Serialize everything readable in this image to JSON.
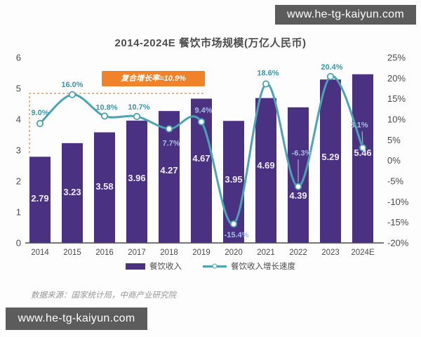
{
  "watermark": {
    "text": "www.he-tg-kaiyun.com"
  },
  "header": {
    "title": "2014-2024E 餐饮市场规模(万亿人民币)"
  },
  "annotation": {
    "cagr_label": "复合增长率=10.9%"
  },
  "footer": {
    "source": "数据来源：国家统计局，中商产业研究院"
  },
  "legend": {
    "items": [
      {
        "label": "餐饮收入"
      },
      {
        "label": "餐饮收入增长速度"
      }
    ]
  },
  "colors": {
    "bar": "#4a3181",
    "line": "#4aa4b4",
    "accent_orange": "#f0832a",
    "label_on_bar": "#a6bfe6",
    "label_teal": "#3597a9",
    "axis_text": "#4a4a4a",
    "watermark_bg": "#5c5c5c"
  },
  "chart_data": {
    "type": "bar+line combo",
    "title": "2014-2024E 餐饮市场规模(万亿人民币)",
    "categories": [
      "2014",
      "2015",
      "2016",
      "2017",
      "2018",
      "2019",
      "2020",
      "2021",
      "2022",
      "2023",
      "2024E"
    ],
    "series": [
      {
        "name": "餐饮收入",
        "type": "bar",
        "axis": "left",
        "unit": "万亿人民币",
        "values": [
          2.79,
          3.23,
          3.58,
          3.96,
          4.27,
          4.67,
          3.95,
          4.69,
          4.39,
          5.29,
          5.46
        ]
      },
      {
        "name": "餐饮收入增长速度",
        "type": "line",
        "axis": "right",
        "unit": "%",
        "values": [
          9.0,
          16.0,
          10.8,
          10.7,
          7.7,
          9.4,
          -15.4,
          18.6,
          -6.3,
          20.4,
          3.1
        ]
      }
    ],
    "left_axis": {
      "min": 0,
      "max": 6,
      "step": 1
    },
    "right_axis": {
      "min": -20,
      "max": 25,
      "step": 5,
      "suffix": "%"
    },
    "annotations": [
      {
        "text": "复合增长率=10.9%",
        "type": "cagr-dashed-box"
      }
    ],
    "grid": false,
    "legend_position": "bottom"
  }
}
